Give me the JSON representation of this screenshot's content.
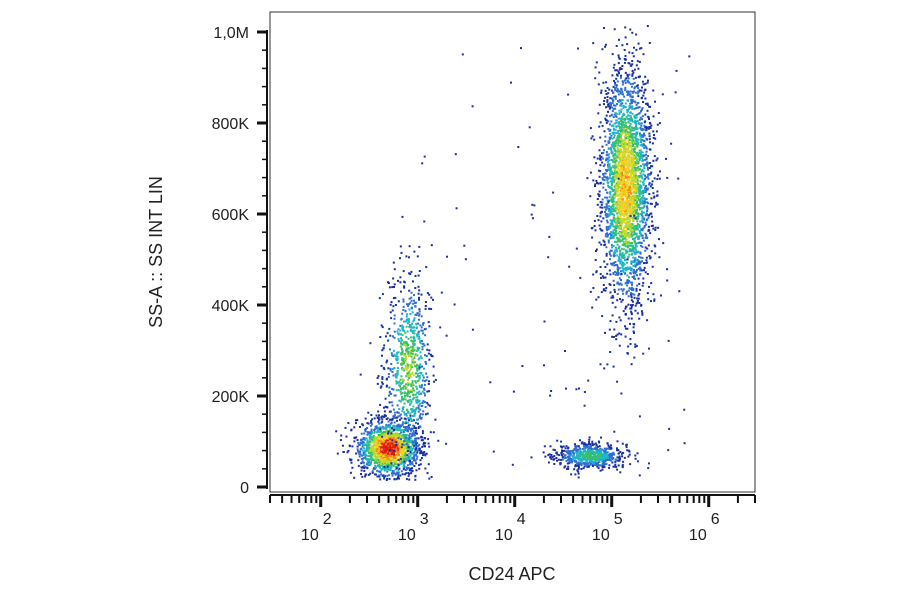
{
  "chart_data": {
    "type": "scatter",
    "style": "density-dot-plot",
    "xlabel": "CD24 APC",
    "ylabel": "SS-A :: SS INT LIN",
    "x_scale": "log",
    "xlim": [
      30,
      3000000
    ],
    "ylim": [
      0,
      1000000
    ],
    "x_ticks": [
      {
        "value": 100,
        "base": "10",
        "exp": "2"
      },
      {
        "value": 1000,
        "base": "10",
        "exp": "3"
      },
      {
        "value": 10000,
        "base": "10",
        "exp": "4"
      },
      {
        "value": 100000,
        "base": "10",
        "exp": "5"
      },
      {
        "value": 1000000,
        "base": "10",
        "exp": "6"
      }
    ],
    "y_ticks": [
      {
        "value": 0,
        "label": "0"
      },
      {
        "value": 200000,
        "label": "200K"
      },
      {
        "value": 400000,
        "label": "400K"
      },
      {
        "value": 600000,
        "label": "600K"
      },
      {
        "value": 800000,
        "label": "800K"
      },
      {
        "value": 1000000,
        "label": "1,0M"
      }
    ],
    "density_colors": [
      "#1a2fa0",
      "#2f6fd0",
      "#1fb5c8",
      "#37c06a",
      "#b4d832",
      "#f4d21f",
      "#f08a18",
      "#e01b12"
    ],
    "populations": [
      {
        "x_center": 500,
        "y_center": 85000,
        "x_spread_decades": 0.16,
        "y_spread": 30000,
        "points": 1500
      },
      {
        "x_center": 800,
        "y_center": 260000,
        "x_spread_decades": 0.12,
        "y_spread": 100000,
        "points": 800
      },
      {
        "x_center": 140000,
        "y_center": 660000,
        "x_spread_decades": 0.13,
        "y_spread": 130000,
        "points": 2800
      },
      {
        "x_center": 60000,
        "y_center": 68000,
        "x_spread_decades": 0.18,
        "y_spread": 14000,
        "points": 600
      }
    ],
    "grid": false,
    "legend": "none"
  }
}
